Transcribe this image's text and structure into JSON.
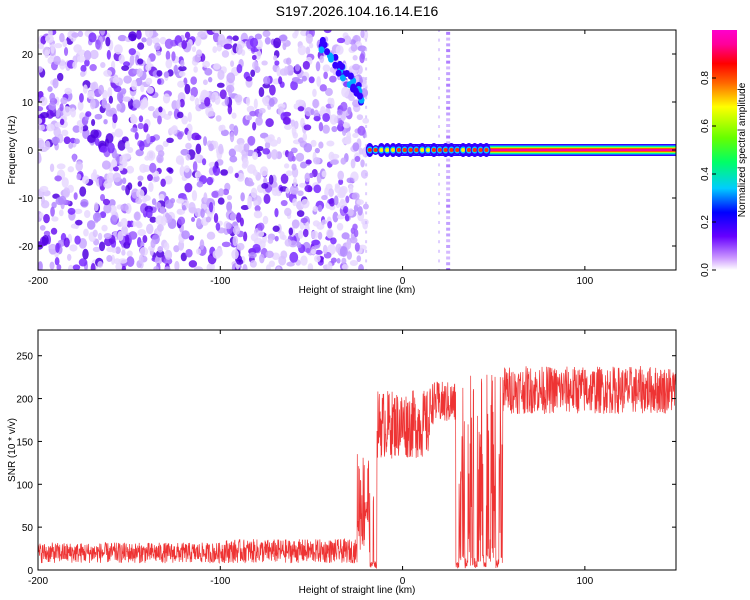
{
  "figure": {
    "title": "S197.2026.104.16.14.E16"
  },
  "chart_data": [
    {
      "type": "heatmap",
      "name": "spectrogram",
      "xlabel": "Height of straight line (km)",
      "ylabel": "Frequency (Hz)",
      "xlim": [
        -200,
        150
      ],
      "ylim": [
        -25,
        25
      ],
      "xticks": [
        -200,
        -100,
        0,
        100
      ],
      "yticks": [
        -20,
        -10,
        0,
        10,
        20
      ],
      "colorbar": {
        "label": "Normalized spectral amplitude",
        "range": [
          0,
          1
        ],
        "ticks": [
          "0.0",
          "0.2",
          "0.4",
          "0.6",
          "0.8"
        ],
        "colors": [
          "#ffffff",
          "#cc99ff",
          "#6600ff",
          "#0000ff",
          "#00ccff",
          "#00ff66",
          "#66ff00",
          "#ffff00",
          "#ff6600",
          "#ff0000",
          "#ff0099",
          "#ff00cc"
        ]
      },
      "regions": [
        {
          "label": "noise",
          "x_range": [
            -200,
            -20
          ],
          "freq_range": [
            -25,
            25
          ],
          "amplitude": 0.1
        },
        {
          "label": "chirp",
          "x_range": [
            -45,
            -22
          ],
          "freq_range": [
            11,
            22
          ],
          "amplitude": 0.25
        },
        {
          "label": "carrier",
          "x_range": [
            -18,
            150
          ],
          "freq": 0,
          "amplitude": 0.95
        },
        {
          "label": "spike",
          "x": 25,
          "freq_range": [
            -25,
            25
          ],
          "amplitude": 0.15
        }
      ]
    },
    {
      "type": "line",
      "name": "snr",
      "xlabel": "Height of straight line (km)",
      "ylabel": "SNR (10 * v/v)",
      "xlim": [
        -200,
        150
      ],
      "ylim": [
        0,
        280
      ],
      "xticks": [
        -200,
        -100,
        0,
        100
      ],
      "yticks": [
        0,
        50,
        100,
        150,
        200,
        250
      ],
      "color": "#ee3333",
      "segments": [
        {
          "x_range": [
            -200,
            -100
          ],
          "mean": 20,
          "spread": 12
        },
        {
          "x_range": [
            -100,
            -25
          ],
          "mean": 22,
          "spread": 14
        },
        {
          "x_range": [
            -25,
            -15
          ],
          "mean": 80,
          "spread": 60
        },
        {
          "x_range": [
            -15,
            15
          ],
          "mean": 170,
          "spread": 40
        },
        {
          "x_range": [
            15,
            30
          ],
          "mean": 195,
          "spread": 25
        },
        {
          "x_range": [
            30,
            55
          ],
          "mean": 120,
          "spread": 110
        },
        {
          "x_range": [
            55,
            150
          ],
          "mean": 210,
          "spread": 28
        }
      ]
    }
  ]
}
